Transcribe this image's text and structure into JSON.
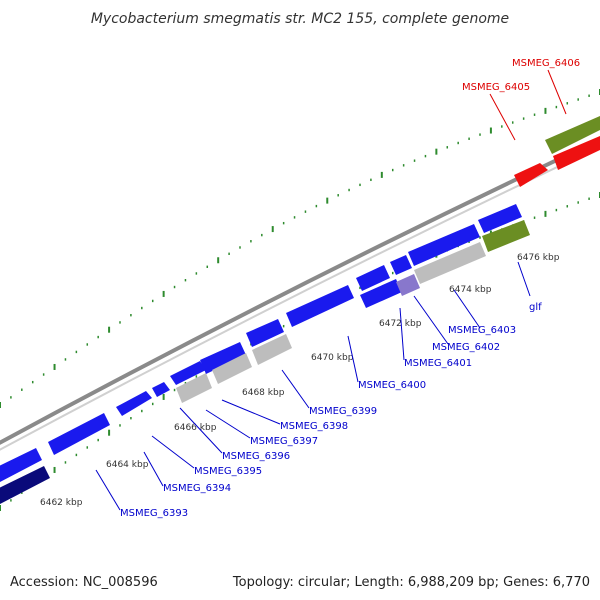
{
  "title": "Mycobacterium smegmatis str. MC2 155, complete genome",
  "footer": {
    "accession": "Accession: NC_008596",
    "summary": "Topology: circular; Length: 6,988,209 bp; Genes: 6,770"
  },
  "colors": {
    "cds": "#1a1aee",
    "cds_dark": "#0a0a7a",
    "pseudo": "#bdbdbd",
    "rna": "#ee1111",
    "other": "#6b8e23",
    "label_blue": "#0000cc",
    "label_red": "#dd0000",
    "tick_green": "#2e8b2e",
    "backbone": "#8a8a8a"
  },
  "scale_ticks": [
    "6462 kbp",
    "6464 kbp",
    "6466 kbp",
    "6468 kbp",
    "6470 kbp",
    "6472 kbp",
    "6474 kbp",
    "6476 kbp"
  ],
  "gene_labels": [
    {
      "text": "MSMEG_6393",
      "color": "label_blue"
    },
    {
      "text": "MSMEG_6394",
      "color": "label_blue"
    },
    {
      "text": "MSMEG_6395",
      "color": "label_blue"
    },
    {
      "text": "MSMEG_6396",
      "color": "label_blue"
    },
    {
      "text": "MSMEG_6397",
      "color": "label_blue"
    },
    {
      "text": "MSMEG_6398",
      "color": "label_blue"
    },
    {
      "text": "MSMEG_6399",
      "color": "label_blue"
    },
    {
      "text": "MSMEG_6400",
      "color": "label_blue"
    },
    {
      "text": "MSMEG_6401",
      "color": "label_blue"
    },
    {
      "text": "MSMEG_6402",
      "color": "label_blue"
    },
    {
      "text": "MSMEG_6403",
      "color": "label_blue"
    },
    {
      "text": "glf",
      "color": "label_blue"
    },
    {
      "text": "MSMEG_6405",
      "color": "label_red"
    },
    {
      "text": "MSMEG_6406",
      "color": "label_red"
    }
  ]
}
